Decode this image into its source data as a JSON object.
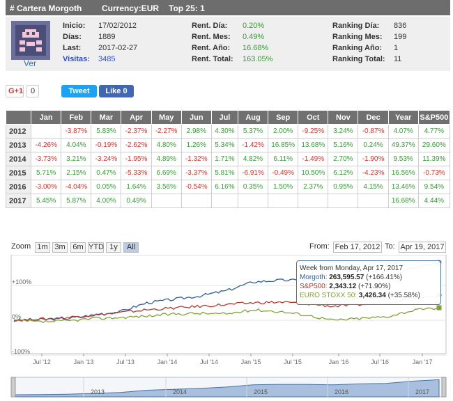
{
  "header": {
    "title": "# Cartera Morgoth",
    "currency": "Currency:EUR",
    "top": "Top 25: 1"
  },
  "info": {
    "inicio_label": "Inicio:",
    "inicio": "17/02/2012",
    "dias_label": "Días:",
    "dias": "1889",
    "last_label": "Last:",
    "last": "2017-02-27",
    "visitas_label": "Visitas:",
    "visitas": "3485",
    "rent_dia_label": "Rent. Día:",
    "rent_dia": "0.20%",
    "rent_mes_label": "Rent. Mes:",
    "rent_mes": "0.49%",
    "rent_ano_label": "Rent. Año:",
    "rent_ano": "16.68%",
    "rent_total_label": "Rent. Total:",
    "rent_total": "163.05%",
    "rank_dia_label": "Ranking Día:",
    "rank_dia": "836",
    "rank_mes_label": "Ranking Mes:",
    "rank_mes": "199",
    "rank_ano_label": "Ranking Año:",
    "rank_ano": "1",
    "rank_total_label": "Ranking Total:",
    "rank_total": "11",
    "ver": "Ver"
  },
  "social": {
    "gplus": "G+1",
    "gcount": "0",
    "tweet": "Tweet",
    "like": "Like 0"
  },
  "table": {
    "headers": [
      "",
      "Jan",
      "Feb",
      "Mar",
      "Apr",
      "May",
      "Jun",
      "Jul",
      "Aug",
      "Sep",
      "Oct",
      "Nov",
      "Dec",
      "Year",
      "S&P500"
    ],
    "rows": [
      {
        "year": "2012",
        "cells": [
          "",
          "-3.87%",
          "5.83%",
          "-2.37%",
          "-2.27%",
          "2.98%",
          "4.30%",
          "5.37%",
          "2.00%",
          "-9.25%",
          "3.24%",
          "-0.87%",
          "4.07%",
          "4.77%"
        ]
      },
      {
        "year": "2013",
        "cells": [
          "-4.26%",
          "4.04%",
          "-0.19%",
          "-2.62%",
          "4.80%",
          "1.26%",
          "5.34%",
          "-1.42%",
          "16.85%",
          "13.68%",
          "5.16%",
          "0.24%",
          "49.37%",
          "29.60%"
        ]
      },
      {
        "year": "2014",
        "cells": [
          "-3.73%",
          "3.21%",
          "-3.24%",
          "-1.95%",
          "4.89%",
          "-1.32%",
          "1.71%",
          "4.82%",
          "6.11%",
          "-1.49%",
          "2.70%",
          "-1.90%",
          "9.53%",
          "11.39%"
        ]
      },
      {
        "year": "2015",
        "cells": [
          "5.71%",
          "2.15%",
          "0.47%",
          "-5.33%",
          "6.69%",
          "-3.37%",
          "5.81%",
          "-6.91%",
          "-0.49%",
          "10.50%",
          "6.12%",
          "-4.23%",
          "16.56%",
          "-0.73%"
        ]
      },
      {
        "year": "2016",
        "cells": [
          "-3.00%",
          "-4.04%",
          "0.05%",
          "1.64%",
          "3.56%",
          "-0.54%",
          "6.16%",
          "0.35%",
          "1.50%",
          "2.37%",
          "0.95%",
          "4.15%",
          "13.46%",
          "9.54%"
        ]
      },
      {
        "year": "2017",
        "cells": [
          "5.45%",
          "5.87%",
          "4.00%",
          "0.49%",
          "",
          "",
          "",
          "",
          "",
          "",
          "",
          "",
          "16.68%",
          "4.44%"
        ]
      }
    ]
  },
  "controls": {
    "zoom_label": "Zoom",
    "zoom_options": [
      "1m",
      "3m",
      "6m",
      "YTD",
      "1y",
      "All"
    ],
    "from_label": "From:",
    "from": "Feb 17, 2012",
    "to_label": "To:",
    "to": "Apr 19, 2017"
  },
  "chart_data": {
    "type": "line",
    "ytick_labels": [
      "+100%",
      "0%",
      "-100%"
    ],
    "xtick_labels": [
      "Jul '12",
      "Jan '13",
      "Jul '13",
      "Jan '14",
      "Jul '14",
      "Jan '15",
      "Jul '15",
      "Jan '16",
      "Jul '16",
      "Jan '17"
    ],
    "navigator_labels": [
      "2013",
      "2014",
      "2015",
      "2016",
      "2017"
    ],
    "x": [
      "2012-02",
      "2012-06",
      "2012-10",
      "2013-02",
      "2013-06",
      "2013-10",
      "2014-02",
      "2014-06",
      "2014-10",
      "2015-02",
      "2015-06",
      "2015-10",
      "2016-02",
      "2016-06",
      "2016-10",
      "2017-02",
      "2017-04"
    ],
    "series": [
      {
        "name": "Morgoth",
        "color": "#2f5c9e",
        "values": [
          0,
          2,
          5,
          15,
          25,
          50,
          60,
          70,
          85,
          110,
          115,
          115,
          110,
          120,
          125,
          150,
          166
        ]
      },
      {
        "name": "S&P500",
        "color": "#b03a2e",
        "values": [
          0,
          3,
          8,
          15,
          22,
          30,
          35,
          40,
          45,
          50,
          52,
          48,
          40,
          45,
          50,
          65,
          72
        ]
      },
      {
        "name": "EURO STOXX 50",
        "color": "#7fa33a",
        "values": [
          0,
          -5,
          -2,
          5,
          8,
          12,
          18,
          20,
          18,
          30,
          25,
          15,
          0,
          5,
          10,
          28,
          36
        ]
      }
    ],
    "tooltip": {
      "title": "Week from Monday, Apr 17, 2017",
      "rows": [
        {
          "name": "Morgoth",
          "value": "263,595.57",
          "change": "(+166.41%)"
        },
        {
          "name": "S&P500",
          "value": "2,343.12",
          "change": "(+71.90%)"
        },
        {
          "name": "EURO STOXX 50",
          "value": "3,426.34",
          "change": "(+35.58%)"
        }
      ]
    }
  }
}
